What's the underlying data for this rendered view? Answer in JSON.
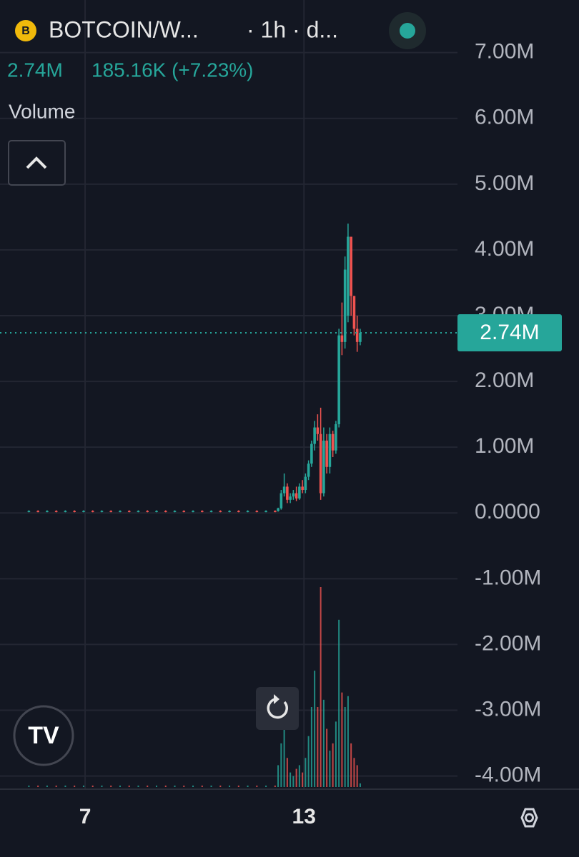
{
  "header": {
    "symbol": "BOTCOIN/W...",
    "interval": "· 1h · d...",
    "price": "2.74M",
    "change": "185.16K (+7.23%)",
    "indicator": "Volume"
  },
  "chart_data": {
    "type": "candlestick",
    "x": [
      0,
      6,
      12,
      18,
      24,
      30,
      36,
      42,
      48,
      54,
      60,
      66,
      72,
      78,
      84,
      90,
      96,
      102,
      108,
      114,
      120,
      126,
      132,
      138,
      144,
      150,
      156,
      162,
      164,
      166,
      168,
      170,
      172,
      174,
      176,
      178,
      180,
      182,
      184,
      186,
      188,
      190,
      192,
      194,
      196,
      198,
      200,
      202,
      204,
      206,
      208,
      210,
      212,
      214,
      216,
      218
    ],
    "open": [
      20000,
      30000,
      20000,
      30000,
      20000,
      30000,
      20000,
      30000,
      20000,
      30000,
      20000,
      30000,
      20000,
      30000,
      20000,
      30000,
      20000,
      30000,
      20000,
      30000,
      20000,
      30000,
      20000,
      30000,
      20000,
      30000,
      20000,
      30000,
      30000,
      70000,
      300000,
      400000,
      200000,
      250000,
      300000,
      220000,
      400000,
      350000,
      550000,
      750000,
      1050000,
      1300000,
      1200000,
      300000,
      1100000,
      700000,
      1200000,
      950000,
      1350000,
      2700000,
      2600000,
      3000000,
      4200000,
      3300000,
      2800000,
      2600000
    ],
    "high": [
      40000,
      40000,
      40000,
      40000,
      40000,
      40000,
      40000,
      40000,
      40000,
      40000,
      40000,
      40000,
      40000,
      40000,
      40000,
      40000,
      40000,
      40000,
      40000,
      40000,
      40000,
      40000,
      40000,
      40000,
      40000,
      40000,
      40000,
      40000,
      80000,
      350000,
      600000,
      450000,
      300000,
      350000,
      400000,
      450000,
      500000,
      600000,
      800000,
      1100000,
      1400000,
      1500000,
      1600000,
      1300000,
      1200000,
      1300000,
      1250000,
      1400000,
      2800000,
      3200000,
      3900000,
      4400000,
      4200000,
      3300000,
      3000000,
      2800000
    ],
    "low": [
      10000,
      10000,
      10000,
      10000,
      10000,
      10000,
      10000,
      10000,
      10000,
      10000,
      10000,
      10000,
      10000,
      10000,
      10000,
      10000,
      10000,
      10000,
      10000,
      10000,
      10000,
      10000,
      10000,
      10000,
      10000,
      10000,
      10000,
      10000,
      20000,
      50000,
      250000,
      150000,
      150000,
      200000,
      180000,
      200000,
      300000,
      300000,
      500000,
      700000,
      950000,
      1100000,
      200000,
      250000,
      600000,
      600000,
      850000,
      900000,
      1300000,
      2400000,
      2500000,
      2900000,
      3000000,
      2700000,
      2450000,
      2550000
    ],
    "close": [
      30000,
      20000,
      30000,
      20000,
      30000,
      20000,
      30000,
      20000,
      30000,
      20000,
      30000,
      20000,
      30000,
      20000,
      30000,
      20000,
      30000,
      20000,
      30000,
      20000,
      30000,
      20000,
      30000,
      20000,
      30000,
      20000,
      30000,
      20000,
      70000,
      300000,
      400000,
      200000,
      250000,
      300000,
      220000,
      400000,
      350000,
      550000,
      750000,
      1050000,
      1300000,
      1200000,
      300000,
      1100000,
      700000,
      1200000,
      950000,
      1350000,
      2700000,
      2600000,
      3700000,
      4200000,
      3300000,
      2800000,
      2600000,
      2740000
    ],
    "volume": [
      2,
      2,
      2,
      2,
      2,
      2,
      2,
      2,
      2,
      2,
      2,
      2,
      2,
      2,
      2,
      2,
      2,
      2,
      2,
      2,
      2,
      2,
      2,
      2,
      2,
      2,
      2,
      2,
      30,
      60,
      100,
      40,
      20,
      15,
      25,
      30,
      20,
      40,
      70,
      110,
      160,
      110,
      275,
      120,
      80,
      50,
      60,
      90,
      230,
      130,
      110,
      125,
      60,
      40,
      30,
      5
    ],
    "colors": {
      "up": "#26a69a",
      "down": "#ef5350"
    },
    "xlim": [
      -19,
      282
    ],
    "xticks": [
      {
        "value": 37,
        "label": "7"
      },
      {
        "value": 181,
        "label": "13"
      }
    ],
    "ylim": [
      -4200000,
      7800000
    ],
    "yticks": [
      {
        "value": 7000000,
        "label": "7.00M"
      },
      {
        "value": 6000000,
        "label": "6.00M"
      },
      {
        "value": 5000000,
        "label": "5.00M"
      },
      {
        "value": 4000000,
        "label": "4.00M"
      },
      {
        "value": 3000000,
        "label": "3.00M"
      },
      {
        "value": 2000000,
        "label": "2.00M"
      },
      {
        "value": 1000000,
        "label": "1.00M"
      },
      {
        "value": 0,
        "label": "0.0000"
      },
      {
        "value": -1000000,
        "label": "-1.00M"
      },
      {
        "value": -2000000,
        "label": "-2.00M"
      },
      {
        "value": -3000000,
        "label": "-3.00M"
      },
      {
        "value": -4000000,
        "label": "-4.00M"
      }
    ],
    "last_price": 2740000,
    "last_price_label": "2.74M",
    "grid": true
  }
}
